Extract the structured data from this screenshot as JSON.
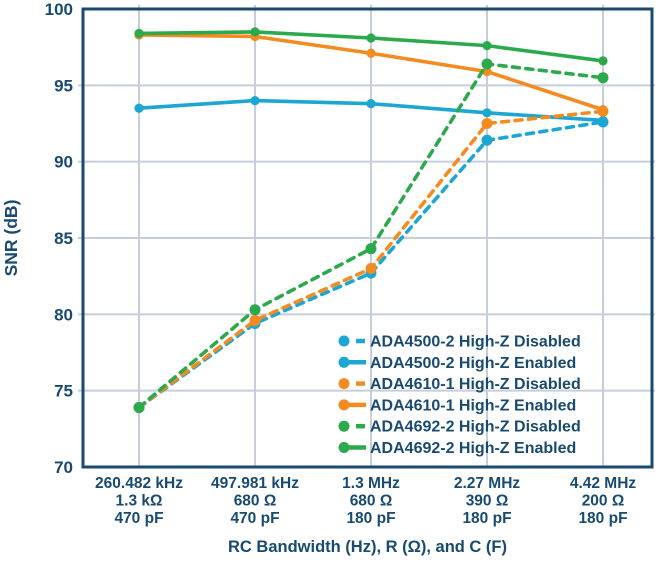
{
  "colors": {
    "navy_text": "#194A6F",
    "grid": "#C5CEDA",
    "frame": "#194A6F",
    "background": "#FFFFFF",
    "blue": "#1CA7D3",
    "orange": "#F48B20",
    "green": "#2CA94D"
  },
  "chart_data": {
    "type": "line",
    "title": "",
    "xlabel": "RC Bandwidth (Hz), R (Ω), and C (F)",
    "ylabel": "SNR (dB)",
    "ylim": [
      70,
      100
    ],
    "yticks": [
      70,
      75,
      80,
      85,
      90,
      95,
      100
    ],
    "grid": true,
    "legend_position": "lower-right",
    "categories": [
      [
        "260.482 kHz",
        "1.3 kΩ",
        "470 pF"
      ],
      [
        "497.981 kHz",
        "680 Ω",
        "470 pF"
      ],
      [
        "1.3 MHz",
        "680 Ω",
        "180 pF"
      ],
      [
        "2.27 MHz",
        "390 Ω",
        "180 pF"
      ],
      [
        "4.42 MHz",
        "200 Ω",
        "180 pF"
      ]
    ],
    "series": [
      {
        "name": "ADA4500-2 High-Z Disabled",
        "style": "dashed",
        "color": "#1CA7D3",
        "values": [
          73.9,
          79.4,
          82.7,
          91.4,
          92.6
        ]
      },
      {
        "name": "ADA4500-2 High-Z Enabled",
        "style": "solid",
        "color": "#1CA7D3",
        "values": [
          93.5,
          94.0,
          93.8,
          93.2,
          92.7
        ]
      },
      {
        "name": "ADA4610-1 High-Z Disabled",
        "style": "dashed",
        "color": "#F48B20",
        "values": [
          73.9,
          79.6,
          83.0,
          92.5,
          93.3
        ]
      },
      {
        "name": "ADA4610-1 High-Z Enabled",
        "style": "solid",
        "color": "#F48B20",
        "values": [
          98.3,
          98.2,
          97.1,
          95.9,
          93.4
        ]
      },
      {
        "name": "ADA4692-2 High-Z Disabled",
        "style": "dashed",
        "color": "#2CA94D",
        "values": [
          73.9,
          80.3,
          84.3,
          96.4,
          95.5
        ]
      },
      {
        "name": "ADA4692-2 High-Z Enabled",
        "style": "solid",
        "color": "#2CA94D",
        "values": [
          98.4,
          98.5,
          98.1,
          97.6,
          96.6
        ]
      }
    ]
  }
}
